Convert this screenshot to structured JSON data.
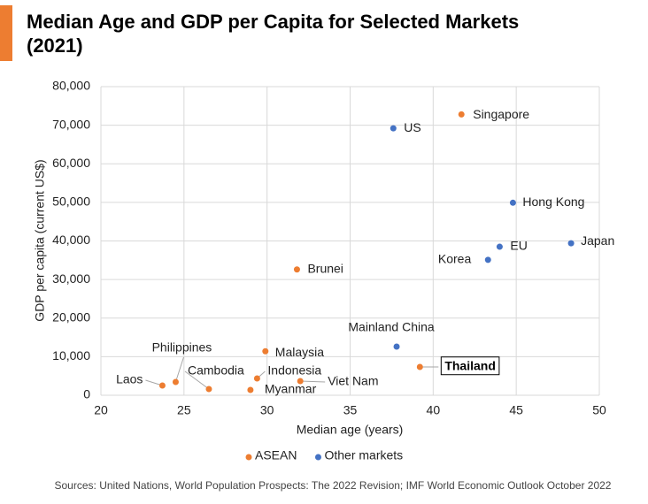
{
  "chart_data": {
    "type": "scatter",
    "title": "Median Age and GDP per Capita for Selected Markets (2021)",
    "x_label": "Median age (years)",
    "y_label": "GDP per capita (current US$)",
    "source": "Sources: United Nations, World Population Prospects: The 2022 Revision; IMF World Economic Outlook October 2022",
    "xlim": [
      20,
      50
    ],
    "xticks": [
      20,
      25,
      30,
      35,
      40,
      45,
      50
    ],
    "ylim": [
      0,
      80000
    ],
    "yticks": [
      0,
      {
        "value": 10000,
        "label": "10,000"
      },
      {
        "value": 20000,
        "label": "20,000"
      },
      {
        "value": 30000,
        "label": "30,000"
      },
      {
        "value": 40000,
        "label": "40,000"
      },
      {
        "value": 50000,
        "label": "50,000"
      },
      {
        "value": 60000,
        "label": "60,000"
      },
      {
        "value": 70000,
        "label": "70,000"
      },
      {
        "value": 80000,
        "label": "80,000"
      }
    ],
    "grid": true,
    "legend": "bottom",
    "series": [
      {
        "name": "ASEAN",
        "color": "#ed7d31",
        "labels": [
          "Singapore",
          "Brunei",
          "Malaysia",
          "Indonesia",
          "Viet Nam",
          "Myanmar",
          "Cambodia",
          "Philippines",
          "Laos",
          "Thailand"
        ],
        "x": [
          41.7,
          31.8,
          29.9,
          29.4,
          32.0,
          29.0,
          26.5,
          24.5,
          23.7,
          39.2
        ],
        "values": [
          72800,
          32600,
          11400,
          4350,
          3670,
          1380,
          1600,
          3440,
          2520,
          7330
        ]
      },
      {
        "name": "Other markets",
        "color": "#4472c4",
        "labels": [
          "US",
          "Hong Kong",
          "EU",
          "Korea",
          "Japan",
          "Mainland China"
        ],
        "x": [
          37.6,
          44.8,
          44.0,
          43.3,
          48.3,
          37.8
        ],
        "values": [
          69200,
          49900,
          38500,
          35100,
          39400,
          12600
        ]
      }
    ]
  }
}
